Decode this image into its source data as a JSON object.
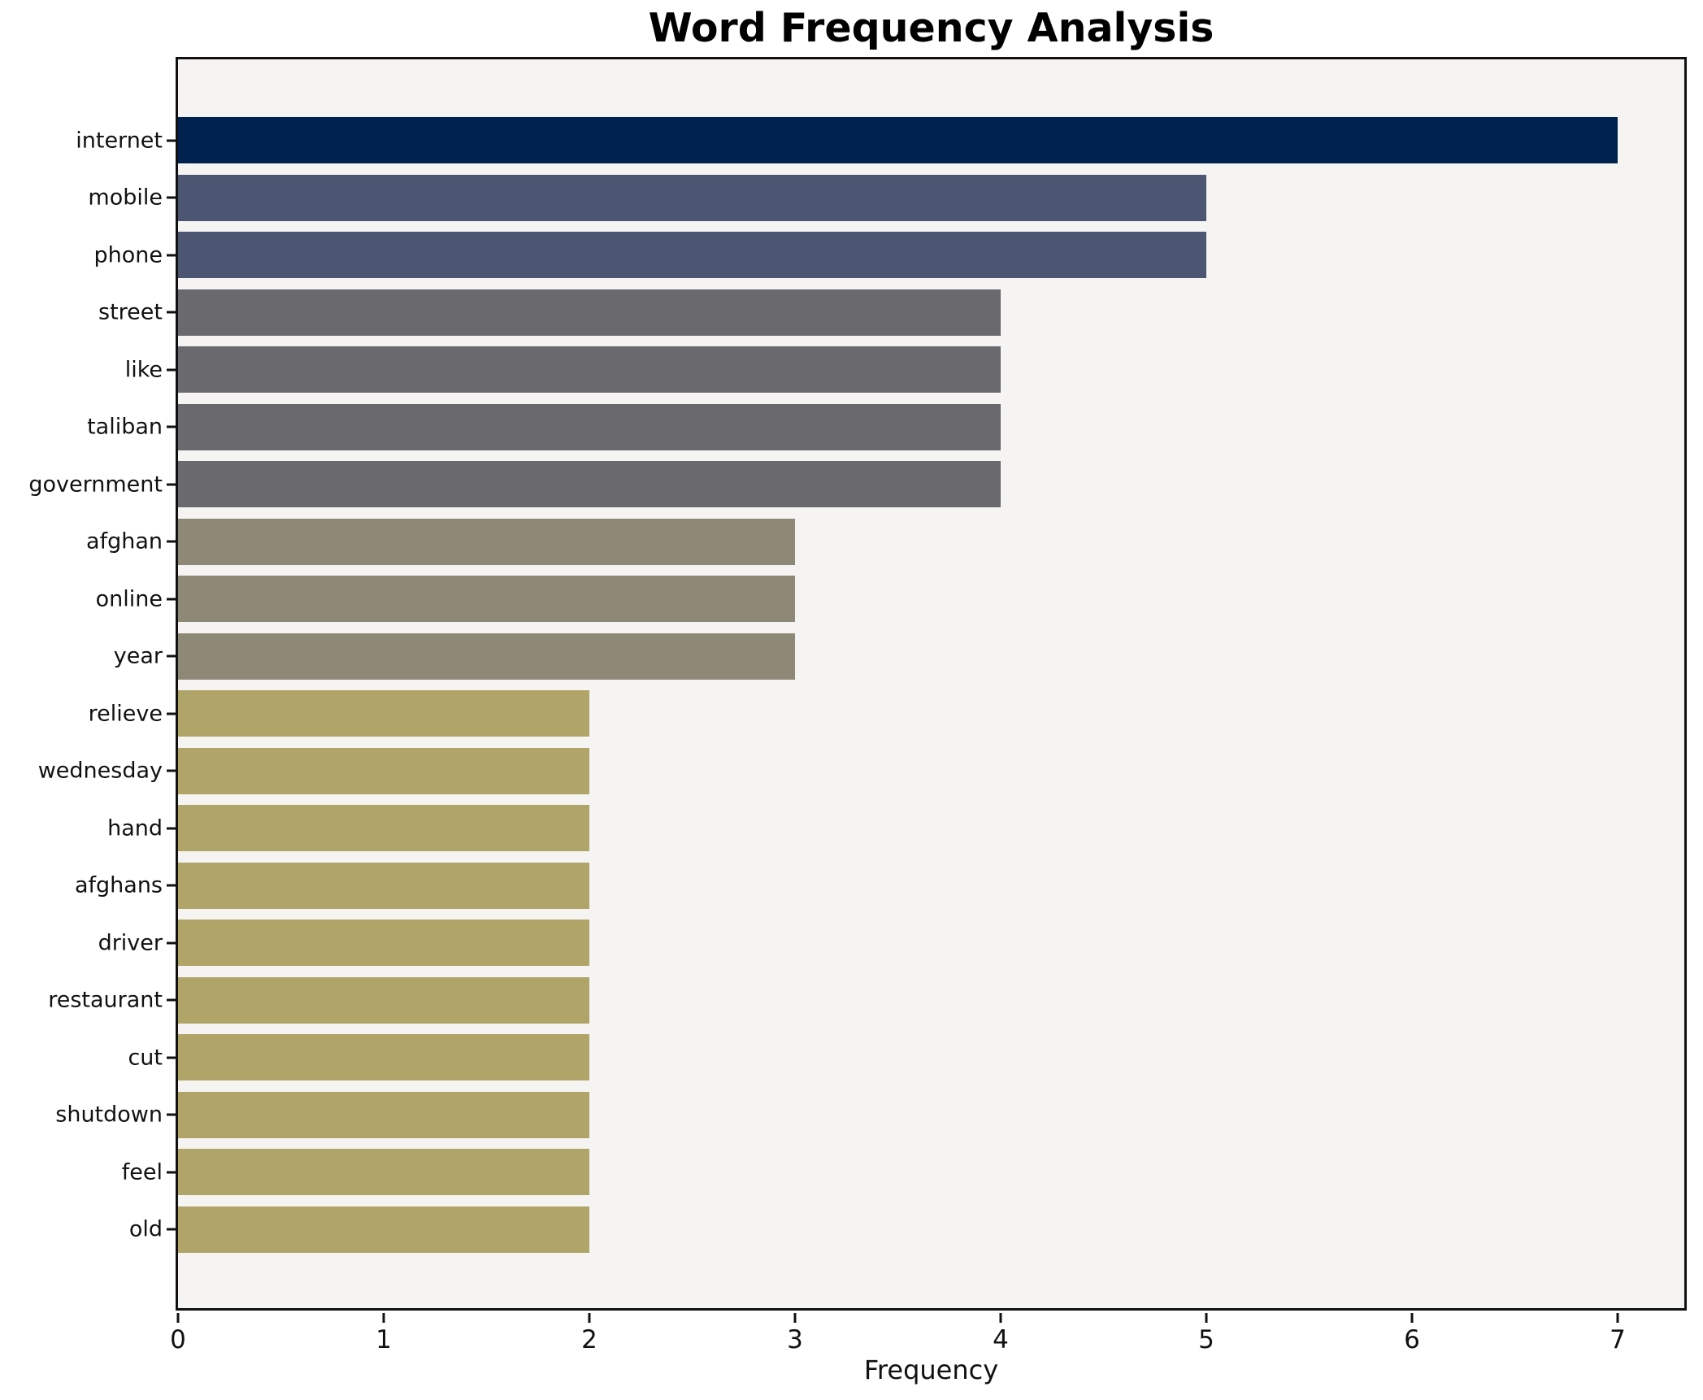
{
  "chart_data": {
    "type": "bar",
    "orientation": "horizontal",
    "title": "Word Frequency Analysis",
    "xlabel": "Frequency",
    "ylabel": "",
    "categories": [
      "internet",
      "mobile",
      "phone",
      "street",
      "like",
      "taliban",
      "government",
      "afghan",
      "online",
      "year",
      "relieve",
      "wednesday",
      "hand",
      "afghans",
      "driver",
      "restaurant",
      "cut",
      "shutdown",
      "feel",
      "old"
    ],
    "values": [
      7,
      5,
      5,
      4,
      4,
      4,
      4,
      3,
      3,
      3,
      2,
      2,
      2,
      2,
      2,
      2,
      2,
      2,
      2,
      2
    ],
    "bar_colors": [
      "#00224e",
      "#4c5571",
      "#4c5571",
      "#6a6a6e",
      "#6a6a6e",
      "#6a6a6e",
      "#6a6a6e",
      "#8e8977",
      "#8e8977",
      "#8e8977",
      "#b0a468",
      "#b0a468",
      "#b0a468",
      "#b0a468",
      "#b0a468",
      "#b0a468",
      "#b0a468",
      "#b0a468",
      "#b0a468",
      "#b0a468"
    ],
    "x_ticks": [
      0,
      1,
      2,
      3,
      4,
      5,
      6,
      7
    ],
    "xlim": [
      0,
      7.35
    ],
    "grid": false,
    "legend": null,
    "colors": {
      "plot_background": "#f5f4f2",
      "figure_background": "#ffffff",
      "spine": "#111111",
      "text": "#111111"
    }
  }
}
